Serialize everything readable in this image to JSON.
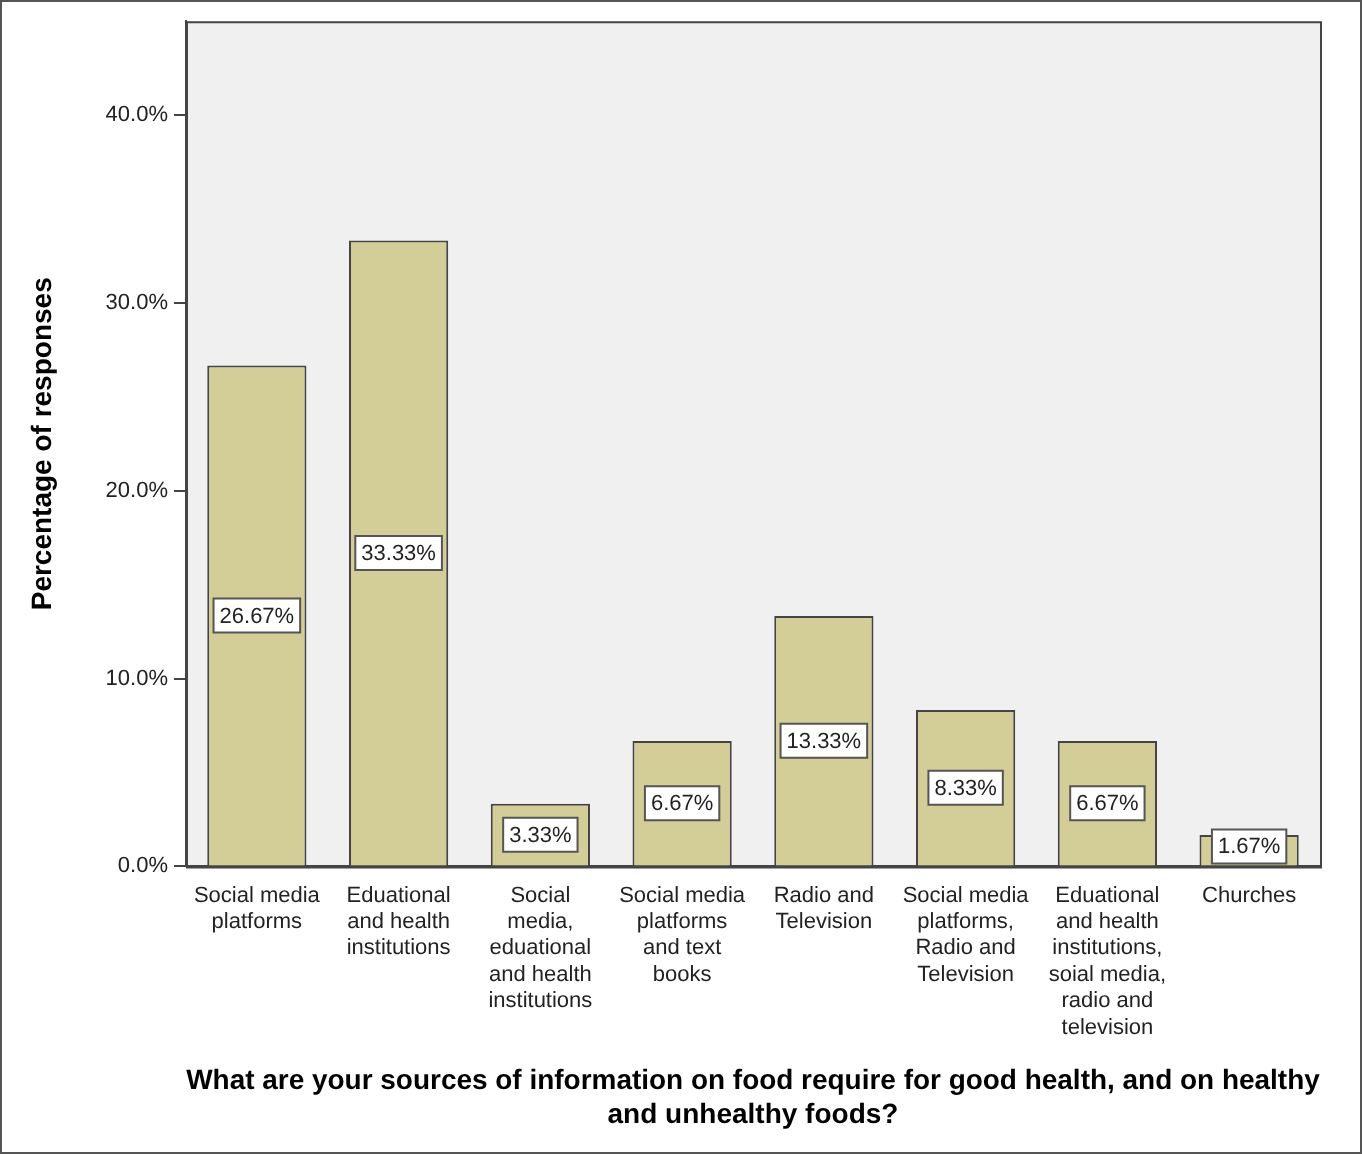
{
  "chart_data": {
    "type": "bar",
    "xlabel": "What are your sources of information on food require for good health, and on healthy and unhealthy foods?",
    "ylabel": "Percentage of responses",
    "categories": [
      "Social media platforms",
      "Eduational and health institutions",
      "Social media, eduational and health institutions",
      "Social media platforms and text books",
      "Radio and Television",
      "Social media platforms, Radio and Television",
      "Eduational and health institutions, soial media, radio and television",
      "Churches"
    ],
    "values": [
      26.67,
      33.33,
      3.33,
      6.67,
      13.33,
      8.33,
      6.67,
      1.67
    ],
    "value_labels": [
      "26.67%",
      "33.33%",
      "3.33%",
      "6.67%",
      "13.33%",
      "8.33%",
      "6.67%",
      "1.67%"
    ],
    "color": "#d3ce97",
    "ylim": [
      0,
      45
    ],
    "yticks": [
      {
        "value": 0,
        "label": "0.0%"
      },
      {
        "value": 10,
        "label": "10.0%"
      },
      {
        "value": 20,
        "label": "20.0%"
      },
      {
        "value": 30,
        "label": "30.0%"
      },
      {
        "value": 40,
        "label": "40.0%"
      }
    ],
    "grid": false,
    "legend": false
  }
}
